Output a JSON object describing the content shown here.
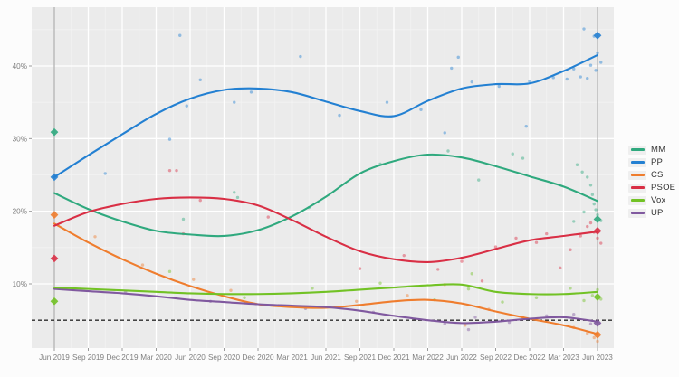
{
  "figure": {
    "background": "#fcfcfc",
    "panel_background": "#ebebeb",
    "grid_major_color": "#ffffff",
    "grid_minor_color": "#f3f3f3",
    "axis_text_color": "#7f7f7f"
  },
  "chart_data": {
    "type": "line",
    "title": "",
    "xlabel": "",
    "ylabel": "",
    "categories": [
      "Jun 2019",
      "Sep 2019",
      "Dec 2019",
      "Mar 2020",
      "Jun 2020",
      "Sep 2020",
      "Dec 2020",
      "Mar 2021",
      "Jun 2021",
      "Sep 2021",
      "Dec 2021",
      "Mar 2022",
      "Jun 2022",
      "Sep 2022",
      "Dec 2022",
      "Mar 2023",
      "Jun 2023"
    ],
    "y_ticks": [
      {
        "value": 10,
        "label": "10%"
      },
      {
        "value": 20,
        "label": "20%"
      },
      {
        "value": 30,
        "label": "30%"
      },
      {
        "value": 40,
        "label": "40%"
      }
    ],
    "y_minor_ticks": [
      5,
      15,
      25,
      35,
      45
    ],
    "ylim": [
      1.2,
      48.1
    ],
    "grid": true,
    "legend_position": "right",
    "series": [
      {
        "name": "MM",
        "color": "#2fa97e",
        "values": [
          22.5,
          20.3,
          18.6,
          17.3,
          16.8,
          16.6,
          17.4,
          19.3,
          22.0,
          25.2,
          26.9,
          27.8,
          27.4,
          26.2,
          24.8,
          23.4,
          21.4
        ]
      },
      {
        "name": "PP",
        "color": "#2380d2",
        "values": [
          24.7,
          27.7,
          30.6,
          33.4,
          35.5,
          36.7,
          36.9,
          36.4,
          35.1,
          33.8,
          33.1,
          35.2,
          36.9,
          37.5,
          37.6,
          39.3,
          41.5
        ]
      },
      {
        "name": "CS",
        "color": "#ef7d2e",
        "values": [
          18.3,
          15.7,
          13.4,
          11.4,
          9.7,
          8.3,
          7.2,
          6.8,
          6.7,
          7.1,
          7.6,
          7.8,
          7.3,
          6.2,
          5.2,
          4.3,
          3.1
        ]
      },
      {
        "name": "PSOE",
        "color": "#d92f45",
        "values": [
          18.0,
          19.9,
          21.0,
          21.7,
          21.9,
          21.7,
          20.8,
          18.8,
          16.5,
          14.5,
          13.4,
          13.0,
          13.6,
          14.8,
          16.0,
          16.6,
          17.2
        ]
      },
      {
        "name": "Vox",
        "color": "#72c225",
        "values": [
          9.5,
          9.3,
          9.1,
          8.9,
          8.7,
          8.6,
          8.6,
          8.7,
          8.9,
          9.2,
          9.5,
          9.8,
          9.9,
          8.9,
          8.6,
          8.6,
          8.9
        ]
      },
      {
        "name": "UP",
        "color": "#80599f",
        "values": [
          9.3,
          9.0,
          8.7,
          8.3,
          7.8,
          7.5,
          7.2,
          7.0,
          6.8,
          6.3,
          5.6,
          5.0,
          4.6,
          4.8,
          5.2,
          5.4,
          4.8
        ]
      }
    ],
    "threshold_line": {
      "value": 5,
      "style": "dashed",
      "color": "#2b2b2b"
    },
    "event_lines": [
      {
        "category": "Jun 2019",
        "x": 0,
        "color": "#9d9d9d"
      },
      {
        "category": "Jun 2023",
        "x": 16,
        "color": "#9d9d9d"
      }
    ],
    "elections": [
      {
        "label": "Jun 2019",
        "x": 0,
        "results": {
          "MM": 30.9,
          "PP": 24.7,
          "CS": 19.5,
          "PSOE": 13.5,
          "Vox": 7.6
        }
      },
      {
        "label": "Jun 2023",
        "x": 16,
        "results": {
          "PP": 44.2,
          "MM": 18.9,
          "PSOE": 17.3,
          "Vox": 8.2,
          "UP": 4.6,
          "CS": 3.0
        }
      }
    ],
    "scatter": {
      "MM": [
        [
          3.8,
          18.9
        ],
        [
          5.3,
          22.6
        ],
        [
          5.4,
          21.9
        ],
        [
          7.5,
          20.5
        ],
        [
          9.6,
          26.5
        ],
        [
          11.6,
          28.3
        ],
        [
          12.5,
          24.3
        ],
        [
          13.5,
          27.9
        ],
        [
          13.8,
          27.3
        ],
        [
          15.3,
          18.6
        ],
        [
          15.4,
          26.4
        ],
        [
          15.55,
          25.4
        ],
        [
          15.6,
          19.9
        ],
        [
          15.7,
          24.7
        ],
        [
          15.8,
          23.6
        ],
        [
          15.85,
          22.3
        ],
        [
          15.9,
          21.0
        ],
        [
          15.95,
          20.2
        ],
        [
          16.0,
          19.5
        ],
        [
          16.1,
          18.7
        ]
      ],
      "PP": [
        [
          1.5,
          25.2
        ],
        [
          3.4,
          29.9
        ],
        [
          3.7,
          44.2
        ],
        [
          3.9,
          34.5
        ],
        [
          4.3,
          38.1
        ],
        [
          5.3,
          35.0
        ],
        [
          5.8,
          36.4
        ],
        [
          7.25,
          41.3
        ],
        [
          8.4,
          33.2
        ],
        [
          9.8,
          35.0
        ],
        [
          10.8,
          34.0
        ],
        [
          11.5,
          30.8
        ],
        [
          11.7,
          39.7
        ],
        [
          11.9,
          41.2
        ],
        [
          12.3,
          37.8
        ],
        [
          13.1,
          37.2
        ],
        [
          13.9,
          31.7
        ],
        [
          14.0,
          37.9
        ],
        [
          14.7,
          38.4
        ],
        [
          15.1,
          38.2
        ],
        [
          15.3,
          39.6
        ],
        [
          15.5,
          38.5
        ],
        [
          15.6,
          45.1
        ],
        [
          15.7,
          38.3
        ],
        [
          15.8,
          40.1
        ],
        [
          15.9,
          44.1
        ],
        [
          15.95,
          39.4
        ],
        [
          16.0,
          41.8
        ],
        [
          16.1,
          40.5
        ]
      ],
      "PSOE": [
        [
          3.4,
          25.6
        ],
        [
          3.6,
          25.6
        ],
        [
          3.8,
          16.9
        ],
        [
          4.3,
          21.5
        ],
        [
          6.3,
          19.2
        ],
        [
          9.0,
          12.1
        ],
        [
          10.3,
          13.9
        ],
        [
          11.3,
          12.0
        ],
        [
          12.0,
          13.1
        ],
        [
          12.6,
          10.4
        ],
        [
          13.0,
          15.1
        ],
        [
          13.6,
          16.3
        ],
        [
          14.2,
          15.7
        ],
        [
          14.5,
          16.9
        ],
        [
          14.9,
          12.2
        ],
        [
          15.2,
          14.7
        ],
        [
          15.5,
          16.6
        ],
        [
          15.7,
          17.9
        ],
        [
          15.8,
          18.4
        ],
        [
          15.9,
          17.1
        ],
        [
          16.0,
          16.3
        ],
        [
          16.1,
          15.6
        ]
      ],
      "CS": [
        [
          1.2,
          16.5
        ],
        [
          2.6,
          12.6
        ],
        [
          4.1,
          10.6
        ],
        [
          5.2,
          9.1
        ],
        [
          6.6,
          7.0
        ],
        [
          8.9,
          7.6
        ],
        [
          10.4,
          8.4
        ],
        [
          11.5,
          9.9
        ],
        [
          12.1,
          4.3
        ],
        [
          12.8,
          6.5
        ],
        [
          13.8,
          5.4
        ],
        [
          14.5,
          4.9
        ],
        [
          15.3,
          4.0
        ],
        [
          15.7,
          3.2
        ],
        [
          15.9,
          2.6
        ],
        [
          16.0,
          2.1
        ]
      ],
      "Vox": [
        [
          3.4,
          11.7
        ],
        [
          5.6,
          8.1
        ],
        [
          7.6,
          9.4
        ],
        [
          9.6,
          10.1
        ],
        [
          11.2,
          7.8
        ],
        [
          12.2,
          9.3
        ],
        [
          12.3,
          11.4
        ],
        [
          13.2,
          7.5
        ],
        [
          14.2,
          8.1
        ],
        [
          15.2,
          9.4
        ],
        [
          15.6,
          7.7
        ],
        [
          15.85,
          8.4
        ],
        [
          16.0,
          9.2
        ],
        [
          16.1,
          7.9
        ]
      ],
      "UP": [
        [
          2.1,
          8.9
        ],
        [
          4.6,
          7.6
        ],
        [
          7.4,
          6.6
        ],
        [
          9.4,
          6.1
        ],
        [
          11.5,
          4.5
        ],
        [
          12.2,
          3.7
        ],
        [
          12.4,
          5.4
        ],
        [
          13.4,
          4.7
        ],
        [
          14.5,
          5.6
        ],
        [
          15.3,
          5.8
        ],
        [
          15.8,
          4.5
        ],
        [
          16.0,
          4.8
        ]
      ]
    },
    "legend": {
      "entries": [
        "MM",
        "PP",
        "CS",
        "PSOE",
        "Vox",
        "UP"
      ]
    }
  }
}
